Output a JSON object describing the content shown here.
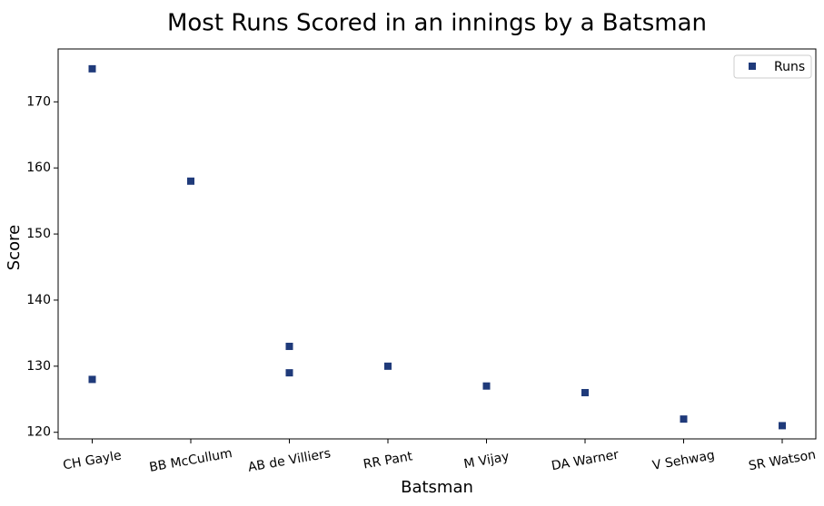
{
  "chart_data": {
    "type": "scatter",
    "title": "Most Runs Scored in an innings by a Batsman",
    "xlabel": "Batsman",
    "ylabel": "Score",
    "categories": [
      "CH Gayle",
      "BB McCullum",
      "AB de Villiers",
      "RR Pant",
      "M Vijay",
      "DA Warner",
      "V Sehwag",
      "SR Watson"
    ],
    "ylim": [
      119,
      178
    ],
    "yticks": [
      120,
      130,
      140,
      150,
      160,
      170
    ],
    "grid": false,
    "legend": "top-right",
    "series": [
      {
        "name": "Runs",
        "color": "#1f3a7a",
        "marker": "square",
        "points": [
          {
            "x": "CH Gayle",
            "y": 175
          },
          {
            "x": "CH Gayle",
            "y": 128
          },
          {
            "x": "BB McCullum",
            "y": 158
          },
          {
            "x": "AB de Villiers",
            "y": 133
          },
          {
            "x": "AB de Villiers",
            "y": 129
          },
          {
            "x": "RR Pant",
            "y": 130
          },
          {
            "x": "M Vijay",
            "y": 127
          },
          {
            "x": "DA Warner",
            "y": 126
          },
          {
            "x": "V Sehwag",
            "y": 122
          },
          {
            "x": "SR Watson",
            "y": 121
          }
        ]
      }
    ]
  }
}
